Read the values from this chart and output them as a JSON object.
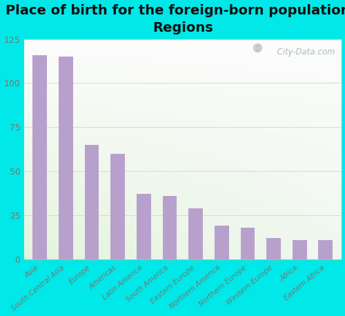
{
  "title": "Place of birth for the foreign-born population -\nRegions",
  "categories": [
    "Asia",
    "South Central Asia",
    "Europe",
    "Americas",
    "Latin America",
    "South America",
    "Eastern Europe",
    "Northern America",
    "Northern Europe",
    "Western Europe",
    "Africa",
    "Eastern Africa"
  ],
  "values": [
    116,
    115,
    65,
    60,
    37,
    36,
    29,
    19,
    18,
    12,
    11,
    11
  ],
  "bar_color": "#b8a0cc",
  "bg_outer": "#00e8e8",
  "ylim": [
    0,
    125
  ],
  "yticks": [
    0,
    25,
    50,
    75,
    100,
    125
  ],
  "title_fontsize": 14,
  "tick_label_color": "#707878",
  "grid_color": "#d0ddd0",
  "watermark_text": "City-Data.com",
  "watermark_color": "#aababa"
}
